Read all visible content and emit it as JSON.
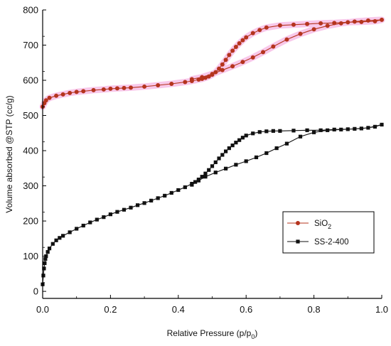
{
  "chart_data": {
    "type": "line",
    "xlabel": "Relative Pressure (p/p0)",
    "xlabel_parts": {
      "main": "Relative Pressure (p/p",
      "sub": "0",
      "close": ")"
    },
    "ylabel": "Volume absorbed @STP (cc/g)",
    "xlim": [
      0,
      1
    ],
    "ylim": [
      -20,
      800
    ],
    "xticks": [
      0.0,
      0.2,
      0.4,
      0.6,
      0.8,
      1.0
    ],
    "xtick_labels": [
      "0.0",
      "0.2",
      "0.4",
      "0.6",
      "0.8",
      "1.0"
    ],
    "yticks": [
      0,
      100,
      200,
      300,
      400,
      500,
      600,
      700,
      800
    ],
    "ytick_labels": [
      "0",
      "100",
      "200",
      "300",
      "400",
      "500",
      "600",
      "700",
      "800"
    ],
    "grid": false,
    "legend_position": "bottom-right",
    "series": [
      {
        "name": "SiO2",
        "name_parts": {
          "main": "SiO",
          "sub": "2"
        },
        "color": "#b5341e",
        "marker": "circle",
        "highlight_color": "#f29ad8",
        "x": [
          0.0,
          0.005,
          0.01,
          0.02,
          0.04,
          0.06,
          0.08,
          0.1,
          0.12,
          0.15,
          0.18,
          0.2,
          0.22,
          0.24,
          0.26,
          0.3,
          0.34,
          0.38,
          0.42,
          0.44,
          0.46,
          0.47,
          0.48,
          0.49,
          0.5,
          0.51,
          0.52,
          0.53,
          0.54,
          0.55,
          0.56,
          0.57,
          0.58,
          0.59,
          0.6,
          0.62,
          0.64,
          0.66,
          0.7,
          0.74,
          0.78,
          0.82,
          0.86,
          0.9,
          0.94,
          0.98,
          1.0,
          0.96,
          0.92,
          0.88,
          0.84,
          0.8,
          0.76,
          0.72,
          0.68,
          0.65,
          0.62,
          0.59,
          0.56,
          0.53,
          0.5,
          0.47,
          0.44
        ],
        "y": [
          525,
          535,
          543,
          550,
          556,
          560,
          564,
          567,
          569,
          572,
          574,
          576,
          577,
          578,
          579,
          582,
          586,
          590,
          595,
          598,
          602,
          604,
          607,
          611,
          616,
          623,
          633,
          645,
          658,
          672,
          684,
          695,
          705,
          714,
          722,
          734,
          743,
          750,
          756,
          758,
          760,
          762,
          763,
          765,
          766,
          768,
          772,
          770,
          767,
          762,
          755,
          745,
          732,
          716,
          696,
          680,
          665,
          652,
          640,
          629,
          618,
          609,
          603
        ]
      },
      {
        "name": "SS-2-400",
        "color": "#111111",
        "marker": "square",
        "x": [
          0.0,
          0.002,
          0.004,
          0.006,
          0.008,
          0.01,
          0.015,
          0.02,
          0.03,
          0.04,
          0.05,
          0.06,
          0.08,
          0.1,
          0.12,
          0.14,
          0.16,
          0.18,
          0.2,
          0.22,
          0.24,
          0.26,
          0.28,
          0.3,
          0.32,
          0.34,
          0.36,
          0.38,
          0.4,
          0.42,
          0.44,
          0.45,
          0.46,
          0.47,
          0.48,
          0.49,
          0.5,
          0.51,
          0.52,
          0.53,
          0.54,
          0.55,
          0.56,
          0.57,
          0.58,
          0.59,
          0.6,
          0.62,
          0.64,
          0.66,
          0.68,
          0.7,
          0.74,
          0.78,
          0.82,
          0.86,
          0.9,
          0.94,
          0.98,
          1.0,
          0.96,
          0.92,
          0.88,
          0.84,
          0.8,
          0.76,
          0.72,
          0.69,
          0.66,
          0.63,
          0.6,
          0.57,
          0.54,
          0.51,
          0.48,
          0.46,
          0.44
        ],
        "y": [
          20,
          45,
          65,
          80,
          92,
          100,
          112,
          122,
          135,
          145,
          152,
          158,
          168,
          178,
          187,
          196,
          204,
          211,
          219,
          226,
          232,
          238,
          245,
          251,
          258,
          265,
          272,
          280,
          288,
          296,
          306,
          311,
          318,
          326,
          335,
          345,
          356,
          367,
          378,
          388,
          398,
          407,
          415,
          423,
          430,
          437,
          443,
          449,
          453,
          455,
          456,
          456,
          457,
          458,
          458,
          460,
          461,
          463,
          468,
          474,
          465,
          462,
          460,
          458,
          452,
          440,
          420,
          407,
          393,
          381,
          370,
          360,
          349,
          338,
          326,
          315,
          303
        ]
      }
    ]
  }
}
